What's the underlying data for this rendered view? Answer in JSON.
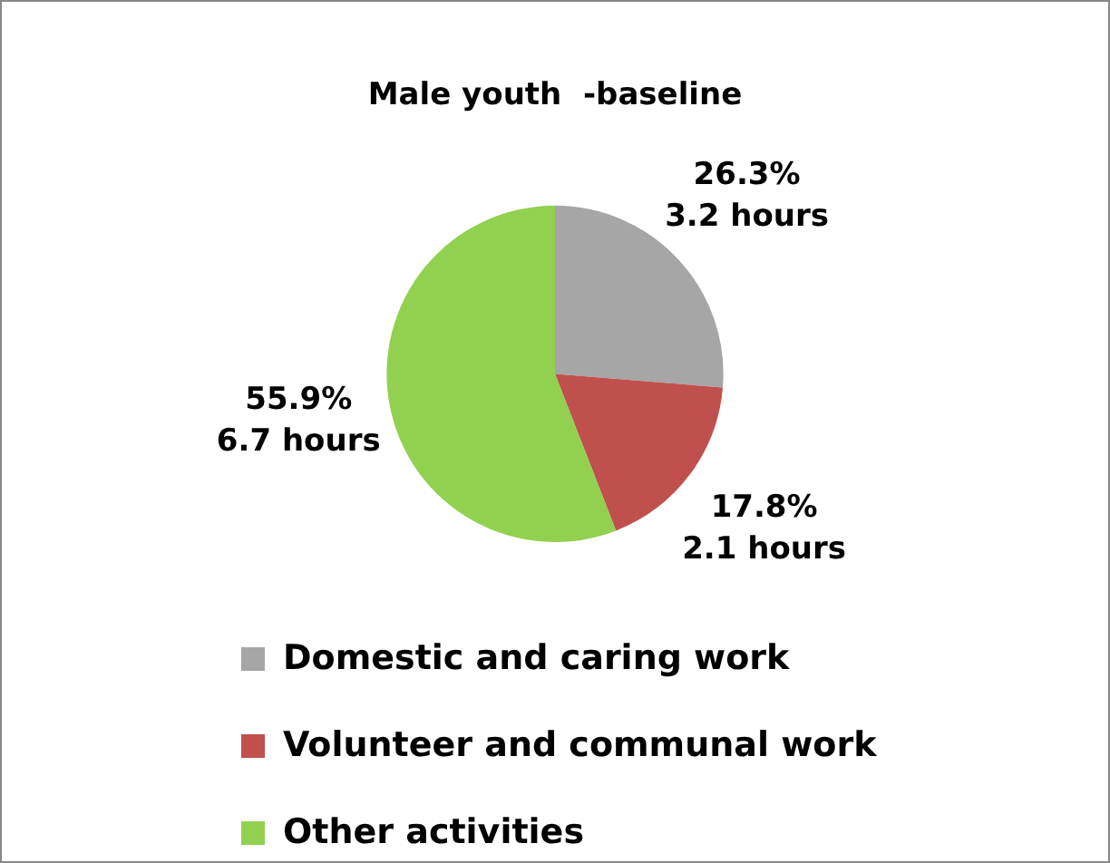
{
  "chart_data": {
    "type": "pie",
    "title": "Male youth  -baseline",
    "categories": [
      "Domestic and caring work",
      "Volunteer and communal work",
      "Other activities"
    ],
    "values": [
      26.3,
      17.8,
      55.9
    ],
    "colors": [
      "#a6a6a6",
      "#c0504d",
      "#92d050"
    ],
    "value_labels": [
      "26.3%\n3.2 hours",
      "17.8%\n2.1 hours",
      "55.9%\n6.7 hours"
    ],
    "legend": "bottom"
  }
}
